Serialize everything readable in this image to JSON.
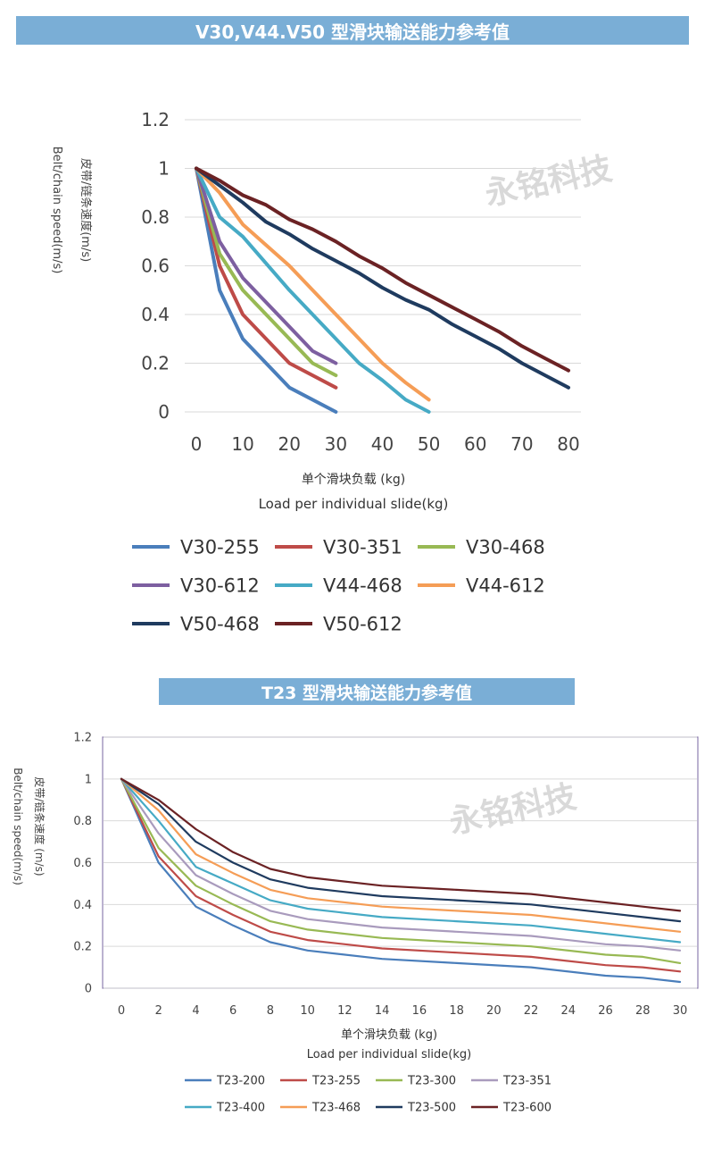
{
  "watermark": "永铭科技",
  "charts": [
    {
      "banner": "V30,V44.V50  型滑块输送能力参考值",
      "ylabel_cn": "皮带/链条速度(m/s)",
      "ylabel_en": "Belt/chain speed(m/s)",
      "xlabel_cn": "单个滑块负载 (kg)",
      "xlabel_en": "Load per individual slide(kg)"
    },
    {
      "banner": "T23  型滑块输送能力参考值",
      "ylabel_cn": "皮带/链条速度 (m/s)",
      "ylabel_en": "Belt/chain speed(m/s)",
      "xlabel_cn": "单个滑块负载 (kg)",
      "xlabel_en": "Load per individual slide(kg)"
    }
  ],
  "chart_data": [
    {
      "type": "line",
      "xlabel": "单个滑块负载 (kg) / Load per individual slide(kg)",
      "ylabel": "皮带/链条速度(m/s) / Belt/chain speed(m/s)",
      "xlim": [
        0,
        80
      ],
      "ylim": [
        0,
        1.2
      ],
      "xticks": [
        0,
        10,
        20,
        30,
        40,
        50,
        60,
        70,
        80
      ],
      "yticks": [
        0,
        0.2,
        0.4,
        0.6,
        0.8,
        1,
        1.2
      ],
      "ytick_labels": [
        "0",
        "0.2",
        "0.4",
        "0.6",
        "0.8",
        "1",
        "1.2"
      ],
      "grid": true,
      "legend_position": "bottom",
      "series": [
        {
          "name": "V30-255",
          "color": "#4a7ebb",
          "x": [
            0,
            5,
            10,
            20,
            30
          ],
          "y": [
            1,
            0.5,
            0.3,
            0.1,
            0
          ]
        },
        {
          "name": "V30-351",
          "color": "#be4b48",
          "x": [
            0,
            5,
            10,
            20,
            30
          ],
          "y": [
            1,
            0.6,
            0.4,
            0.2,
            0.1
          ]
        },
        {
          "name": "V30-468",
          "color": "#98b954",
          "x": [
            0,
            5,
            10,
            20,
            25,
            30
          ],
          "y": [
            1,
            0.65,
            0.5,
            0.3,
            0.2,
            0.15
          ]
        },
        {
          "name": "V30-612",
          "color": "#7d5fa0",
          "x": [
            0,
            5,
            10,
            20,
            25,
            30
          ],
          "y": [
            1,
            0.7,
            0.55,
            0.35,
            0.25,
            0.2
          ]
        },
        {
          "name": "V44-468",
          "color": "#46aac5",
          "x": [
            0,
            5,
            10,
            20,
            30,
            35,
            40,
            45,
            50
          ],
          "y": [
            1,
            0.8,
            0.72,
            0.5,
            0.3,
            0.2,
            0.13,
            0.05,
            0
          ]
        },
        {
          "name": "V44-612",
          "color": "#f59d56",
          "x": [
            0,
            5,
            10,
            20,
            30,
            40,
            45,
            50
          ],
          "y": [
            1,
            0.9,
            0.77,
            0.6,
            0.4,
            0.2,
            0.12,
            0.05
          ]
        },
        {
          "name": "V50-468",
          "color": "#1f3b5f",
          "x": [
            0,
            5,
            10,
            15,
            20,
            25,
            30,
            35,
            40,
            45,
            50,
            55,
            60,
            65,
            70,
            75,
            80
          ],
          "y": [
            1,
            0.93,
            0.86,
            0.78,
            0.73,
            0.67,
            0.62,
            0.57,
            0.51,
            0.46,
            0.42,
            0.36,
            0.31,
            0.26,
            0.2,
            0.15,
            0.1
          ]
        },
        {
          "name": "V50-612",
          "color": "#6b2224",
          "x": [
            0,
            5,
            10,
            15,
            20,
            25,
            30,
            35,
            40,
            45,
            50,
            55,
            60,
            65,
            70,
            75,
            80
          ],
          "y": [
            1,
            0.95,
            0.89,
            0.85,
            0.79,
            0.75,
            0.7,
            0.64,
            0.59,
            0.53,
            0.48,
            0.43,
            0.38,
            0.33,
            0.27,
            0.22,
            0.17
          ]
        }
      ]
    },
    {
      "type": "line",
      "xlabel": "单个滑块负载 (kg) / Load per individual slide(kg)",
      "ylabel": "皮带/链条速度 (m/s) / Belt/chain speed(m/s)",
      "xlim": [
        0,
        30
      ],
      "ylim": [
        0,
        1.2
      ],
      "xticks": [
        0,
        2,
        4,
        6,
        8,
        10,
        12,
        14,
        16,
        18,
        20,
        22,
        24,
        26,
        28,
        30
      ],
      "yticks": [
        0,
        0.2,
        0.4,
        0.6,
        0.8,
        1,
        1.2
      ],
      "ytick_labels": [
        "0",
        "0.2",
        "0.4",
        "0.6",
        "0.8",
        "1",
        "1.2"
      ],
      "grid": true,
      "legend_position": "bottom",
      "series": [
        {
          "name": "T23-200",
          "color": "#4a7ebb",
          "x": [
            0,
            2,
            4,
            6,
            8,
            10,
            14,
            18,
            22,
            26,
            28,
            30
          ],
          "y": [
            1,
            0.6,
            0.39,
            0.3,
            0.22,
            0.18,
            0.14,
            0.12,
            0.1,
            0.06,
            0.05,
            0.03
          ]
        },
        {
          "name": "T23-255",
          "color": "#be4b48",
          "x": [
            0,
            2,
            4,
            6,
            8,
            10,
            14,
            18,
            22,
            26,
            28,
            30
          ],
          "y": [
            1,
            0.63,
            0.44,
            0.35,
            0.27,
            0.23,
            0.19,
            0.17,
            0.15,
            0.11,
            0.1,
            0.08
          ]
        },
        {
          "name": "T23-300",
          "color": "#98b954",
          "x": [
            0,
            2,
            4,
            6,
            8,
            10,
            14,
            18,
            22,
            26,
            28,
            30
          ],
          "y": [
            1,
            0.67,
            0.49,
            0.4,
            0.32,
            0.28,
            0.24,
            0.22,
            0.2,
            0.16,
            0.15,
            0.12
          ]
        },
        {
          "name": "T23-351",
          "color": "#a99bbd",
          "x": [
            0,
            2,
            4,
            6,
            8,
            10,
            14,
            18,
            22,
            26,
            28,
            30
          ],
          "y": [
            1,
            0.74,
            0.54,
            0.45,
            0.37,
            0.33,
            0.29,
            0.27,
            0.25,
            0.21,
            0.2,
            0.18
          ]
        },
        {
          "name": "T23-400",
          "color": "#46aac5",
          "x": [
            0,
            2,
            4,
            6,
            8,
            10,
            14,
            18,
            22,
            26,
            28,
            30
          ],
          "y": [
            1,
            0.8,
            0.58,
            0.5,
            0.42,
            0.38,
            0.34,
            0.32,
            0.3,
            0.26,
            0.24,
            0.22
          ]
        },
        {
          "name": "T23-468",
          "color": "#f59d56",
          "x": [
            0,
            2,
            4,
            6,
            8,
            10,
            14,
            18,
            22,
            26,
            28,
            30
          ],
          "y": [
            1,
            0.85,
            0.64,
            0.55,
            0.47,
            0.43,
            0.39,
            0.37,
            0.35,
            0.31,
            0.29,
            0.27
          ]
        },
        {
          "name": "T23-500",
          "color": "#1f3b5f",
          "x": [
            0,
            2,
            4,
            6,
            8,
            10,
            14,
            18,
            22,
            26,
            28,
            30
          ],
          "y": [
            1,
            0.88,
            0.7,
            0.6,
            0.52,
            0.48,
            0.44,
            0.42,
            0.4,
            0.36,
            0.34,
            0.32
          ]
        },
        {
          "name": "T23-600",
          "color": "#6b2224",
          "x": [
            0,
            2,
            4,
            6,
            8,
            10,
            14,
            18,
            22,
            26,
            28,
            30
          ],
          "y": [
            1,
            0.9,
            0.76,
            0.65,
            0.57,
            0.53,
            0.49,
            0.47,
            0.45,
            0.41,
            0.39,
            0.37
          ]
        }
      ]
    }
  ]
}
